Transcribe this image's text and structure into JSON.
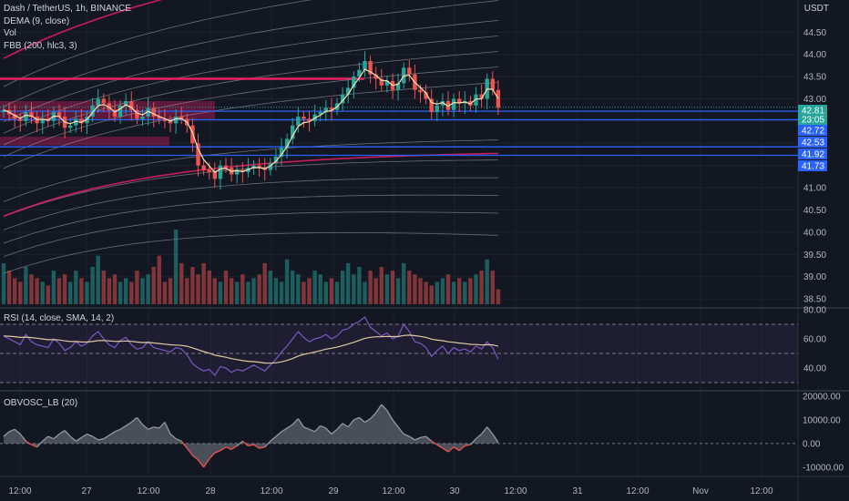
{
  "legend": {
    "symbol": "Dash / TetherUS, 1h, BINANCE",
    "dema": "DEMA (9, close)",
    "vol": "Vol",
    "fbb": "FBB (200, hlc3, 3)",
    "rsi": "RSI (14, close, SMA, 14, 2)",
    "obv": "OBVOSC_LB (20)"
  },
  "currency": "USDT",
  "colors": {
    "background": "#131722",
    "up": "#26a69a",
    "down": "#ef5350",
    "fbb_main": "#e91e63",
    "fbb_lines": "#b2b5be",
    "hline": "#2962ff",
    "rsi_line": "#7e57c2",
    "rsi_ma": "#e0c9a0",
    "obv_fill": "#787b86"
  },
  "chart_data": [
    {
      "type": "candlestick",
      "ylim": [
        38.4,
        45.1
      ],
      "y_ticks": [
        "44.50",
        "44.00",
        "43.50",
        "43.00",
        "42.50",
        "42.00",
        "41.50",
        "41.00",
        "40.50",
        "40.00",
        "39.50",
        "39.00",
        "38.50"
      ],
      "x_ticks": [
        "12:00",
        "27",
        "12:00",
        "28",
        "12:00",
        "29",
        "12:00",
        "30",
        "12:00",
        "31",
        "12:00",
        "Nov",
        "12:00"
      ],
      "price_labels": [
        {
          "text": "42.81",
          "value": 42.81,
          "color": "#26a69a"
        },
        {
          "text": "23:05",
          "value": 42.65,
          "color": "#26a69a"
        },
        {
          "text": "42.72",
          "value": 42.72,
          "color": "#2962ff"
        },
        {
          "text": "42.53",
          "value": 42.53,
          "color": "#2962ff"
        },
        {
          "text": "41.92",
          "value": 41.92,
          "color": "#2962ff"
        },
        {
          "text": "41.73",
          "value": 41.73,
          "color": "#2962ff"
        }
      ],
      "horizontal_lines": [
        42.72,
        42.53,
        41.92,
        41.73
      ],
      "resistance_line": 43.45,
      "close_series": [
        42.75,
        42.65,
        42.55,
        42.5,
        42.7,
        42.6,
        42.45,
        42.55,
        42.5,
        42.7,
        42.6,
        42.35,
        42.4,
        42.55,
        42.45,
        42.6,
        42.85,
        43.0,
        42.9,
        42.75,
        42.6,
        42.85,
        42.95,
        42.75,
        42.55,
        42.6,
        42.8,
        42.6,
        42.55,
        42.5,
        42.45,
        42.6,
        42.55,
        42.4,
        42.0,
        41.5,
        41.4,
        41.35,
        41.2,
        41.5,
        41.45,
        41.3,
        41.4,
        41.35,
        41.45,
        41.5,
        41.45,
        41.4,
        41.55,
        41.7,
        41.9,
        42.1,
        42.4,
        42.6,
        42.55,
        42.5,
        42.65,
        42.7,
        42.8,
        42.75,
        42.9,
        43.1,
        43.25,
        43.5,
        43.65,
        43.85,
        43.55,
        43.45,
        43.3,
        43.4,
        43.2,
        43.35,
        43.7,
        43.55,
        43.2,
        43.15,
        43.0,
        42.7,
        42.85,
        42.95,
        42.75,
        43.0,
        42.9,
        42.95,
        42.85,
        43.1,
        43.0,
        43.45,
        43.2,
        42.8
      ],
      "volume": [
        0.55,
        0.45,
        0.35,
        0.3,
        0.5,
        0.4,
        0.35,
        0.3,
        0.25,
        0.45,
        0.35,
        0.4,
        0.3,
        0.45,
        0.35,
        0.3,
        0.5,
        0.65,
        0.45,
        0.35,
        0.4,
        0.3,
        0.35,
        0.3,
        0.45,
        0.35,
        0.4,
        0.5,
        0.65,
        0.3,
        0.35,
        1.0,
        0.55,
        0.35,
        0.5,
        0.4,
        0.55,
        0.45,
        0.35,
        0.3,
        0.45,
        0.35,
        0.3,
        0.4,
        0.3,
        0.35,
        0.4,
        0.55,
        0.45,
        0.35,
        0.3,
        0.6,
        0.45,
        0.4,
        0.3,
        0.35,
        0.45,
        0.4,
        0.3,
        0.35,
        0.3,
        0.45,
        0.55,
        0.4,
        0.5,
        0.3,
        0.45,
        0.35,
        0.5,
        0.4,
        0.45,
        0.35,
        0.55,
        0.45,
        0.4,
        0.35,
        0.3,
        0.25,
        0.3,
        0.35,
        0.4,
        0.3,
        0.35,
        0.3,
        0.35,
        0.4,
        0.45,
        0.6,
        0.45,
        0.2
      ]
    },
    {
      "type": "line",
      "name": "RSI",
      "ylim": [
        25,
        80
      ],
      "y_ticks": [
        "80.00",
        "60.00",
        "40.00"
      ],
      "bands": [
        70,
        50,
        30
      ],
      "series": [
        62,
        60,
        58,
        56,
        63,
        58,
        56,
        55,
        54,
        60,
        57,
        52,
        54,
        58,
        55,
        57,
        62,
        65,
        60,
        56,
        54,
        59,
        61,
        56,
        53,
        54,
        58,
        54,
        53,
        52,
        51,
        54,
        53,
        49,
        43,
        40,
        38,
        39,
        35,
        41,
        40,
        37,
        39,
        38,
        40,
        42,
        40,
        38,
        42,
        46,
        51,
        55,
        60,
        65,
        61,
        58,
        60,
        61,
        63,
        60,
        62,
        66,
        67,
        70,
        72,
        75,
        68,
        65,
        62,
        64,
        60,
        62,
        70,
        65,
        58,
        57,
        54,
        48,
        52,
        55,
        50,
        54,
        52,
        53,
        51,
        55,
        53,
        58,
        54,
        46
      ]
    },
    {
      "type": "area",
      "name": "OBV Oscillator",
      "ylim": [
        -12000,
        20000
      ],
      "y_ticks": [
        "20000.00",
        "10000.00",
        "0.00",
        "-10000.00"
      ],
      "series": [
        3000,
        5000,
        6000,
        4000,
        1000,
        -500,
        -1500,
        1000,
        3000,
        2000,
        4000,
        5500,
        3000,
        1000,
        2500,
        4000,
        3000,
        1500,
        2000,
        3500,
        5000,
        6000,
        7500,
        9000,
        11000,
        8000,
        6000,
        7000,
        6500,
        9000,
        4000,
        2000,
        1000,
        -2000,
        -5000,
        -7000,
        -10000,
        -6500,
        -4000,
        -3000,
        -1500,
        -2500,
        -1000,
        1000,
        -1000,
        -500,
        -2000,
        -1500,
        1000,
        3000,
        5000,
        6500,
        8000,
        10500,
        7000,
        6000,
        5000,
        7500,
        6500,
        4000,
        6000,
        8500,
        7000,
        10000,
        11000,
        9000,
        10500,
        13000,
        16500,
        14000,
        10000,
        7000,
        4000,
        3000,
        1500,
        2500,
        3000,
        1000,
        -500,
        -2000,
        -3500,
        -1500,
        -3000,
        -1000,
        -500,
        2000,
        4000,
        7000,
        4000,
        500
      ]
    }
  ]
}
